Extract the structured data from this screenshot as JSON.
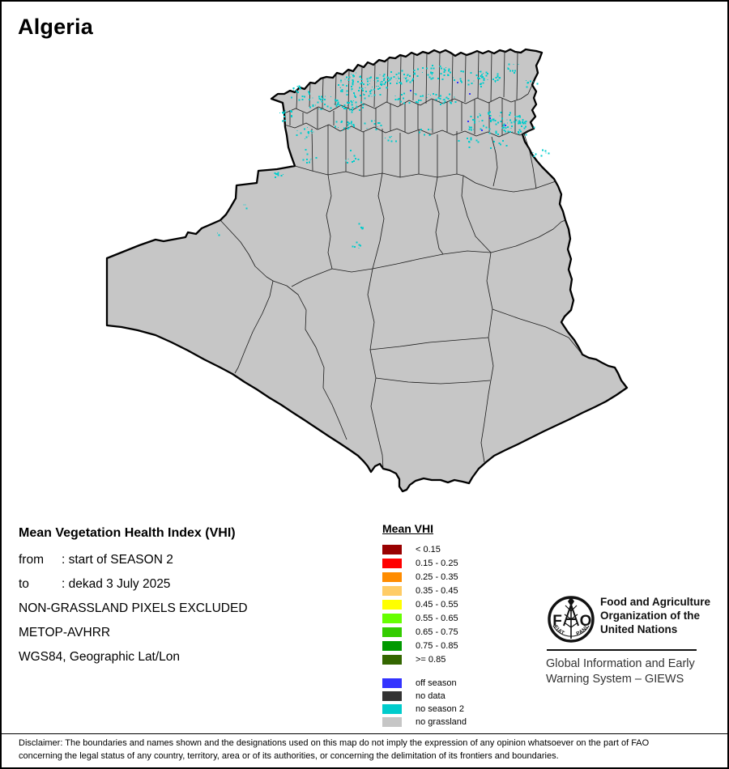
{
  "page": {
    "title": "Algeria"
  },
  "info": {
    "heading": "Mean Vegetation Health Index (VHI)",
    "rows": [
      {
        "label": "from",
        "value": ": start of SEASON 2"
      },
      {
        "label": "to",
        "value": ": dekad 3 July 2025"
      },
      {
        "label": "",
        "value": "NON-GRASSLAND PIXELS EXCLUDED"
      },
      {
        "label": "",
        "value": "METOP-AVHRR"
      },
      {
        "label": "",
        "value": "WGS84, Geographic Lat/Lon"
      }
    ]
  },
  "legend": {
    "title": "Mean VHI",
    "classes": [
      {
        "label": "< 0.15",
        "color": "#990000"
      },
      {
        "label": "0.15 - 0.25",
        "color": "#FF0000"
      },
      {
        "label": "0.25 - 0.35",
        "color": "#FF8C00"
      },
      {
        "label": "0.35 - 0.45",
        "color": "#FFCC66"
      },
      {
        "label": "0.45 - 0.55",
        "color": "#FFFF00"
      },
      {
        "label": "0.55 - 0.65",
        "color": "#66FF00"
      },
      {
        "label": "0.65 - 0.75",
        "color": "#33CC00"
      },
      {
        "label": "0.75 - 0.85",
        "color": "#009900"
      },
      {
        "label": ">= 0.85",
        "color": "#336600"
      }
    ],
    "extra": [
      {
        "label": "off season",
        "color": "#3333FF"
      },
      {
        "label": "no data",
        "color": "#333333"
      },
      {
        "label": "no season 2",
        "color": "#00CCCC"
      },
      {
        "label": "no grassland",
        "color": "#C6C6C6"
      }
    ]
  },
  "fao": {
    "logo_letters": {
      "f": "F",
      "a": "A",
      "o": "O"
    },
    "motto": {
      "left": "FIAT",
      "right": "PANIS"
    },
    "org_lines": [
      "Food and Agriculture",
      "Organization of the",
      "United Nations"
    ],
    "giews_lines": [
      "Global Information and Early",
      "Warning System – GIEWS"
    ]
  },
  "disclaimer": {
    "lines": [
      "Disclaimer: The boundaries and names shown and the designations used on this map do not imply the expression of any opinion whatsoever on the part of FAO",
      "concerning the legal status of any country, territory, area or of its authorities, or concerning the delimitation of its frontiers and boundaries."
    ]
  },
  "map": {
    "land_color": "#C6C6C6",
    "border_color": "#000000",
    "no_season2_color": "#00CCCC",
    "off_season_color": "#3333FF"
  }
}
